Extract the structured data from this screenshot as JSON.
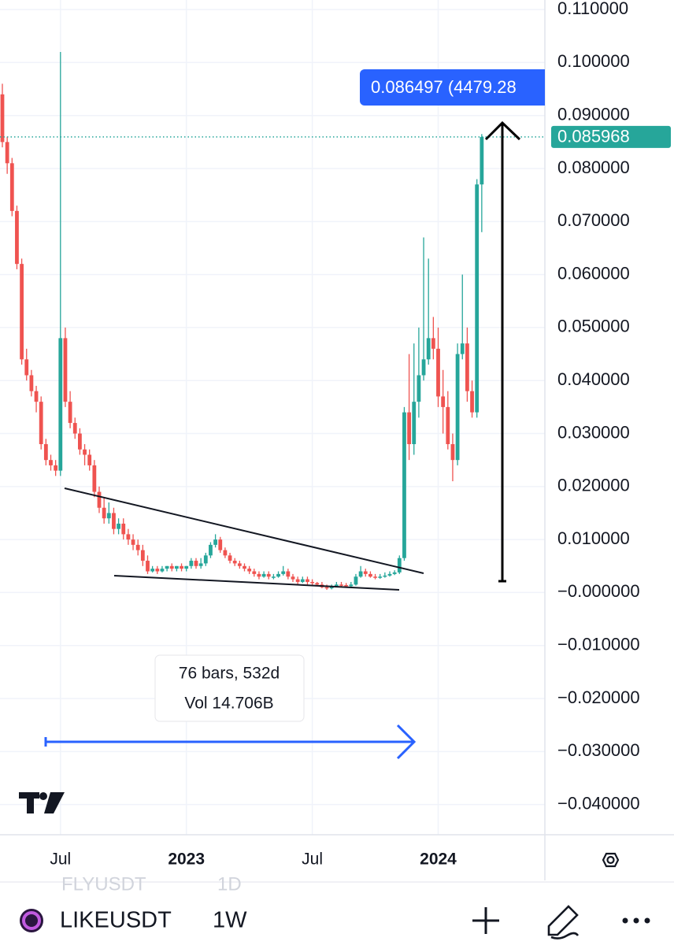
{
  "chart_data": {
    "type": "candlestick",
    "categories": [
      null,
      null,
      null,
      null,
      null,
      null,
      null,
      null,
      null,
      null,
      null,
      null,
      "Jul",
      null,
      null,
      null,
      null,
      null,
      null,
      null,
      null,
      null,
      null,
      null,
      null,
      null,
      null,
      null,
      null,
      null,
      null,
      null,
      null,
      null,
      null,
      null,
      null,
      null,
      "2023",
      null,
      null,
      null,
      null,
      null,
      null,
      null,
      null,
      null,
      null,
      null,
      null,
      null,
      null,
      null,
      null,
      null,
      null,
      null,
      null,
      null,
      null,
      null,
      null,
      null,
      "Jul",
      null,
      null,
      null,
      null,
      null,
      null,
      null,
      null,
      null,
      null,
      null,
      null,
      null,
      null,
      null,
      null,
      null,
      null,
      null,
      null,
      null,
      null,
      null,
      null,
      null,
      "2024",
      null,
      null,
      null,
      null,
      null,
      null,
      null,
      null,
      null
    ],
    "open": [
      0.094,
      0.085,
      0.081,
      0.072,
      0.062,
      0.044,
      0.041,
      0.038,
      0.036,
      0.028,
      0.025,
      0.024,
      0.023,
      0.048,
      0.036,
      0.032,
      0.03,
      0.027,
      0.026,
      0.024,
      0.019,
      0.016,
      0.014,
      0.015,
      0.012,
      0.013,
      0.011,
      0.01,
      0.009,
      0.008,
      0.006,
      0.004,
      0.0045,
      0.004,
      0.0045,
      0.005,
      0.0045,
      0.005,
      0.0045,
      0.005,
      0.006,
      0.005,
      0.0055,
      0.007,
      0.009,
      0.01,
      0.008,
      0.007,
      0.006,
      0.0055,
      0.005,
      0.0045,
      0.004,
      0.0035,
      0.003,
      0.0035,
      0.003,
      0.003,
      0.0035,
      0.004,
      0.003,
      0.0025,
      0.002,
      0.0025,
      0.002,
      0.0018,
      0.0015,
      0.001,
      0.0008,
      0.0012,
      0.0015,
      0.0014,
      0.0012,
      0.0015,
      0.003,
      0.004,
      0.0035,
      0.003,
      0.0028,
      0.003,
      0.0032,
      0.0035,
      0.0038,
      0.0065,
      0.034,
      0.028,
      0.036,
      0.041,
      0.044,
      0.048,
      0.046,
      0.037,
      0.035,
      0.028,
      0.025,
      0.045,
      0.047,
      0.038,
      0.034,
      0.077
    ],
    "high": [
      0.096,
      0.086,
      0.082,
      0.073,
      0.063,
      0.046,
      0.042,
      0.039,
      0.037,
      0.029,
      0.026,
      0.025,
      0.102,
      0.05,
      0.038,
      0.033,
      0.031,
      0.028,
      0.027,
      0.025,
      0.02,
      0.018,
      0.017,
      0.016,
      0.014,
      0.014,
      0.012,
      0.011,
      0.01,
      0.009,
      0.007,
      0.005,
      0.005,
      0.005,
      0.005,
      0.0055,
      0.005,
      0.0055,
      0.005,
      0.0065,
      0.0065,
      0.0065,
      0.0075,
      0.0095,
      0.011,
      0.0105,
      0.0085,
      0.0075,
      0.0065,
      0.006,
      0.0055,
      0.005,
      0.0045,
      0.004,
      0.004,
      0.004,
      0.0035,
      0.004,
      0.005,
      0.0045,
      0.0035,
      0.003,
      0.003,
      0.003,
      0.0025,
      0.002,
      0.002,
      0.0015,
      0.0015,
      0.002,
      0.002,
      0.0018,
      0.002,
      0.0035,
      0.005,
      0.0045,
      0.004,
      0.0035,
      0.0035,
      0.0038,
      0.004,
      0.0042,
      0.007,
      0.035,
      0.045,
      0.047,
      0.05,
      0.067,
      0.063,
      0.052,
      0.05,
      0.042,
      0.038,
      0.03,
      0.047,
      0.06,
      0.05,
      0.04,
      0.078,
      0.0865
    ],
    "low": [
      0.084,
      0.079,
      0.071,
      0.061,
      0.043,
      0.04,
      0.037,
      0.034,
      0.027,
      0.024,
      0.023,
      0.022,
      0.022,
      0.035,
      0.031,
      0.029,
      0.026,
      0.024,
      0.023,
      0.018,
      0.015,
      0.013,
      0.013,
      0.011,
      0.011,
      0.01,
      0.009,
      0.008,
      0.007,
      0.005,
      0.0035,
      0.0038,
      0.0035,
      0.0038,
      0.004,
      0.004,
      0.004,
      0.004,
      0.004,
      0.0045,
      0.0045,
      0.0045,
      0.005,
      0.0065,
      0.0085,
      0.0075,
      0.0065,
      0.0055,
      0.005,
      0.0045,
      0.004,
      0.0035,
      0.003,
      0.0025,
      0.0028,
      0.0025,
      0.0025,
      0.0028,
      0.0032,
      0.0025,
      0.002,
      0.0015,
      0.0018,
      0.0015,
      0.0014,
      0.0012,
      0.0008,
      0.0005,
      0.0006,
      0.001,
      0.0011,
      0.001,
      0.001,
      0.0013,
      0.0028,
      0.003,
      0.0028,
      0.0025,
      0.0026,
      0.0028,
      0.003,
      0.0033,
      0.0035,
      0.006,
      0.025,
      0.026,
      0.033,
      0.04,
      0.043,
      0.044,
      0.035,
      0.03,
      0.027,
      0.021,
      0.024,
      0.044,
      0.036,
      0.033,
      0.033,
      0.068
    ],
    "close": [
      0.085,
      0.081,
      0.072,
      0.062,
      0.044,
      0.041,
      0.038,
      0.036,
      0.028,
      0.025,
      0.024,
      0.023,
      0.048,
      0.036,
      0.032,
      0.03,
      0.027,
      0.026,
      0.024,
      0.019,
      0.016,
      0.014,
      0.015,
      0.012,
      0.013,
      0.011,
      0.01,
      0.009,
      0.008,
      0.006,
      0.004,
      0.0045,
      0.004,
      0.0045,
      0.005,
      0.0045,
      0.005,
      0.0045,
      0.005,
      0.006,
      0.005,
      0.0055,
      0.007,
      0.009,
      0.01,
      0.008,
      0.007,
      0.006,
      0.0055,
      0.005,
      0.0045,
      0.004,
      0.0035,
      0.003,
      0.0035,
      0.003,
      0.003,
      0.0035,
      0.004,
      0.003,
      0.0025,
      0.002,
      0.0025,
      0.002,
      0.0018,
      0.0015,
      0.001,
      0.0008,
      0.0012,
      0.0015,
      0.0014,
      0.0012,
      0.0015,
      0.003,
      0.004,
      0.0035,
      0.003,
      0.0028,
      0.003,
      0.0032,
      0.0035,
      0.0038,
      0.0065,
      0.034,
      0.028,
      0.036,
      0.041,
      0.044,
      0.048,
      0.046,
      0.037,
      0.035,
      0.028,
      0.025,
      0.045,
      0.047,
      0.038,
      0.034,
      0.077,
      0.085968
    ],
    "up_color": "#26a69a",
    "down_color": "#ef5350",
    "ylim": [
      -0.0457,
      0.1118
    ],
    "yticks": [
      {
        "value": 0.11,
        "label": "0.110000"
      },
      {
        "value": 0.1,
        "label": "0.100000"
      },
      {
        "value": 0.09,
        "label": "0.090000"
      },
      {
        "value": 0.08,
        "label": "0.080000"
      },
      {
        "value": 0.07,
        "label": "0.070000"
      },
      {
        "value": 0.06,
        "label": "0.060000"
      },
      {
        "value": 0.05,
        "label": "0.050000"
      },
      {
        "value": 0.04,
        "label": "0.040000"
      },
      {
        "value": 0.03,
        "label": "0.030000"
      },
      {
        "value": 0.02,
        "label": "0.020000"
      },
      {
        "value": 0.01,
        "label": "0.010000"
      },
      {
        "value": 0,
        "label": "−0.000000"
      },
      {
        "value": -0.01,
        "label": "−0.010000"
      },
      {
        "value": -0.02,
        "label": "−0.020000"
      },
      {
        "value": -0.03,
        "label": "−0.030000"
      },
      {
        "value": -0.04,
        "label": "−0.040000"
      }
    ],
    "grid": true,
    "last_price": 0.085968,
    "crosshair_label": "0.086497 (4479.28",
    "measure_bars": "76 bars, 532d",
    "measure_volume": "Vol 14.706B"
  },
  "toolbar": {
    "symbol": "LIKEUSDT",
    "interval": "1W",
    "background_symbol": "FLYUSDT",
    "background_interval": "1D"
  }
}
